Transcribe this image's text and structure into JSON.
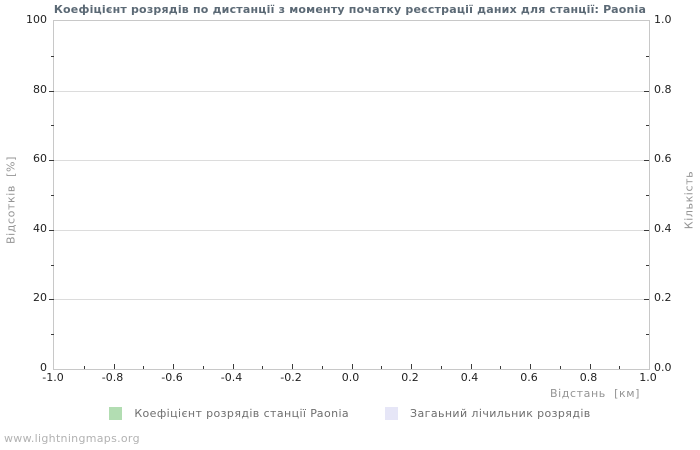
{
  "page": {
    "watermark": "www.lightningmaps.org"
  },
  "chart_data": {
    "type": "bar",
    "title": "Коефіцієнт розрядів по дистанції з моменту початку реєстрації даних для станції: Paonia",
    "x_axis": {
      "label": "Відстань  [км]",
      "min": -1.0,
      "max": 1.0,
      "major_step": 0.2,
      "minor_step": 0.1,
      "tick_labels": [
        "-1.0",
        "-0.8",
        "-0.6",
        "-0.4",
        "-0.2",
        "0.0",
        "0.2",
        "0.4",
        "0.6",
        "0.8",
        "1.0"
      ]
    },
    "y_axis_left": {
      "label": "Відсотків  [%]",
      "min": 0,
      "max": 100,
      "major_step": 20,
      "minor_step": 10,
      "tick_labels": [
        "0",
        "20",
        "40",
        "60",
        "80",
        "100"
      ]
    },
    "y_axis_right": {
      "label": "Кількість",
      "min": 0.0,
      "max": 1.0,
      "major_step": 0.2,
      "minor_step": 0.1,
      "tick_labels": [
        "0.0",
        "0.2",
        "0.4",
        "0.6",
        "0.8",
        "1.0"
      ]
    },
    "series": [
      {
        "name": "Коефіцієнт розрядів станції Paonia",
        "color": "#b2ddb2",
        "values": []
      },
      {
        "name": "Загаьний лічильник розрядів",
        "color": "#e6e6f7",
        "values": []
      }
    ],
    "grid": {
      "horizontal": true,
      "vertical": false
    },
    "legend_position": "bottom",
    "plot_empty": true
  },
  "colors": {
    "title": "#5b6975",
    "tick_label": "#1f1f1f",
    "axis_title": "#949494",
    "legend_text": "#6e6e6e",
    "grid_line": "#dcdcdc",
    "plot_border": "#c8c8c8",
    "tick_mark": "#3a3a3a",
    "watermark": "#b2b2b2",
    "background": "#ffffff"
  }
}
